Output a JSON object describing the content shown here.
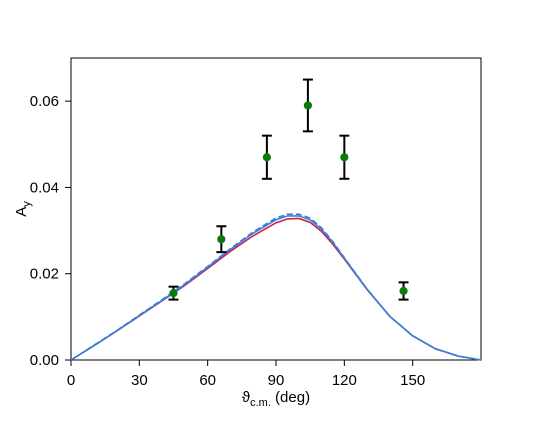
{
  "chart_data": {
    "type": "scatter",
    "xlabel": {
      "main": "ϑ",
      "sub": "c.m.",
      "unit": " (deg)"
    },
    "ylabel": {
      "main": "A",
      "sub": "y"
    },
    "xlim": [
      0,
      180
    ],
    "ylim": [
      0.0,
      0.07
    ],
    "xticks": [
      0,
      30,
      60,
      90,
      120,
      150
    ],
    "xtick_labels": [
      "0",
      "30",
      "60",
      "90",
      "120",
      "150"
    ],
    "yticks": [
      0.0,
      0.02,
      0.04,
      0.06
    ],
    "ytick_labels": [
      "0.00",
      "0.02",
      "0.04",
      "0.06"
    ],
    "grid": false,
    "series": [
      {
        "kind": "points-with-errors",
        "color": "#0a7a0a",
        "x": [
          45,
          66,
          86,
          104,
          120,
          146
        ],
        "y": [
          0.0155,
          0.028,
          0.047,
          0.059,
          0.047,
          0.016
        ],
        "yerr": [
          0.0015,
          0.003,
          0.005,
          0.006,
          0.005,
          0.002
        ]
      },
      {
        "kind": "curve",
        "color": "#cc2244",
        "dash": "solid",
        "x": [
          0,
          10,
          20,
          30,
          40,
          50,
          60,
          70,
          80,
          90,
          95,
          100,
          105,
          110,
          115,
          120,
          130,
          140,
          150,
          160,
          170,
          180
        ],
        "y": [
          0.0,
          0.0033,
          0.0067,
          0.0102,
          0.0137,
          0.0173,
          0.0212,
          0.0252,
          0.0288,
          0.0318,
          0.0327,
          0.0328,
          0.0319,
          0.0298,
          0.0268,
          0.0234,
          0.0163,
          0.0101,
          0.0056,
          0.0026,
          0.0009,
          0.0
        ]
      },
      {
        "kind": "curve",
        "color": "#3a7fd8",
        "dash": "solid",
        "x": [
          0,
          10,
          20,
          30,
          40,
          50,
          60,
          70,
          80,
          90,
          95,
          100,
          105,
          110,
          115,
          120,
          130,
          140,
          150,
          160,
          170,
          180
        ],
        "y": [
          0.0,
          0.0033,
          0.0067,
          0.0103,
          0.0138,
          0.0175,
          0.0215,
          0.0256,
          0.0294,
          0.0325,
          0.0334,
          0.0334,
          0.0325,
          0.0303,
          0.0272,
          0.0236,
          0.0164,
          0.0101,
          0.0056,
          0.0026,
          0.0009,
          0.0
        ]
      },
      {
        "kind": "curve",
        "color": "#3a7fd8",
        "dash": "dashed",
        "x": [
          0,
          10,
          20,
          30,
          40,
          50,
          60,
          70,
          80,
          90,
          95,
          100,
          105,
          110,
          115,
          120,
          130,
          140,
          150,
          160,
          170,
          180
        ],
        "y": [
          0.0,
          0.0034,
          0.0068,
          0.0104,
          0.014,
          0.0177,
          0.0217,
          0.0258,
          0.0297,
          0.0329,
          0.0338,
          0.0338,
          0.0329,
          0.0306,
          0.0274,
          0.0237,
          0.0164,
          0.0101,
          0.0056,
          0.0026,
          0.0009,
          0.0
        ]
      }
    ]
  }
}
